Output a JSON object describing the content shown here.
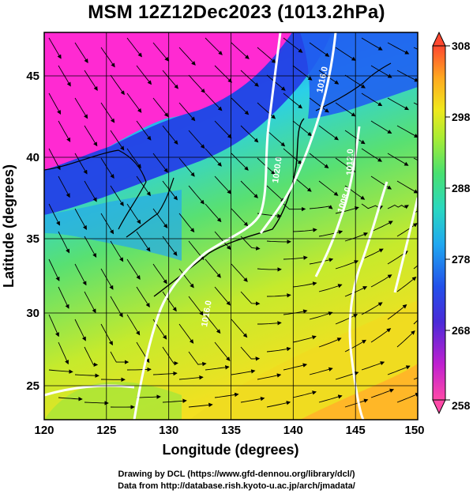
{
  "title": "MSM 12Z12Dec2023 (1013.2hPa)",
  "xaxis": {
    "label": "Longitude (degrees)",
    "ticks": [
      "120",
      "125",
      "130",
      "135",
      "140",
      "145",
      "150"
    ]
  },
  "yaxis": {
    "label": "Latitude (degrees)",
    "ticks": [
      "25",
      "30",
      "35",
      "40",
      "45"
    ]
  },
  "colorbar": {
    "ticks": [
      "258",
      "268",
      "278",
      "288",
      "298",
      "308"
    ],
    "colors": [
      "#ff3c9c",
      "#c020d0",
      "#5a2ad6",
      "#2244e8",
      "#20a8f0",
      "#2ad8c8",
      "#4ce06a",
      "#a8ec34",
      "#f0e81c",
      "#ffa820",
      "#ff5a32"
    ]
  },
  "map": {
    "lon_range": [
      120,
      150
    ],
    "lat_range": [
      22.5,
      48
    ],
    "colors": {
      "magenta": "#ff2fd0",
      "blue": "#2848ea",
      "cyan": "#2ad0f0",
      "green": "#58e072",
      "yellow": "#e8ec30",
      "orange": "#ffb02a",
      "land_outline": "#000000",
      "contour": "#ffffff",
      "streamline": "#000000"
    }
  },
  "contour_labels": [
    "1016.0",
    "1020.0",
    "1012.0",
    "1008.0",
    "1016.0"
  ],
  "credits": [
    "Drawing by DCL (https://www.gfd-dennou.org/library/dcl/)",
    "Data from http://database.rish.kyoto-u.ac.jp/arch/jmadata/"
  ]
}
